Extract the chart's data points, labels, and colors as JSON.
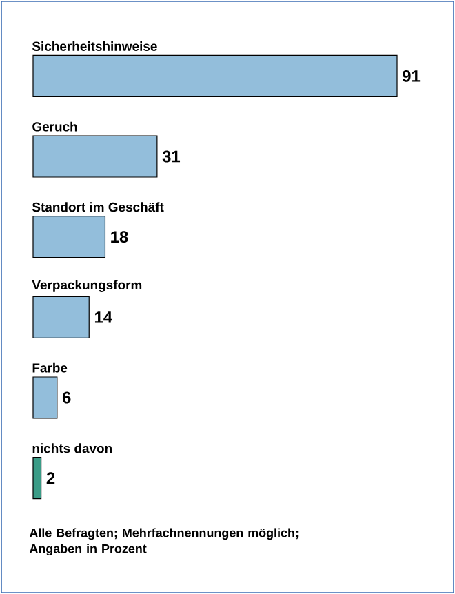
{
  "chart_data": {
    "type": "bar",
    "orientation": "horizontal",
    "categories": [
      "Sicherheitshinweise",
      "Geruch",
      "Standort im Geschäft",
      "Verpackungsform",
      "Farbe",
      "nichts davon"
    ],
    "values": [
      91,
      31,
      18,
      14,
      6,
      2
    ],
    "colors": [
      "#93bedb",
      "#93bedb",
      "#93bedb",
      "#93bedb",
      "#93bedb",
      "#3a9c87"
    ],
    "data_labels": true,
    "annotations": [
      "Alle Befragten; Mehrfachnennungen möglich; Angaben in Prozent"
    ]
  }
}
